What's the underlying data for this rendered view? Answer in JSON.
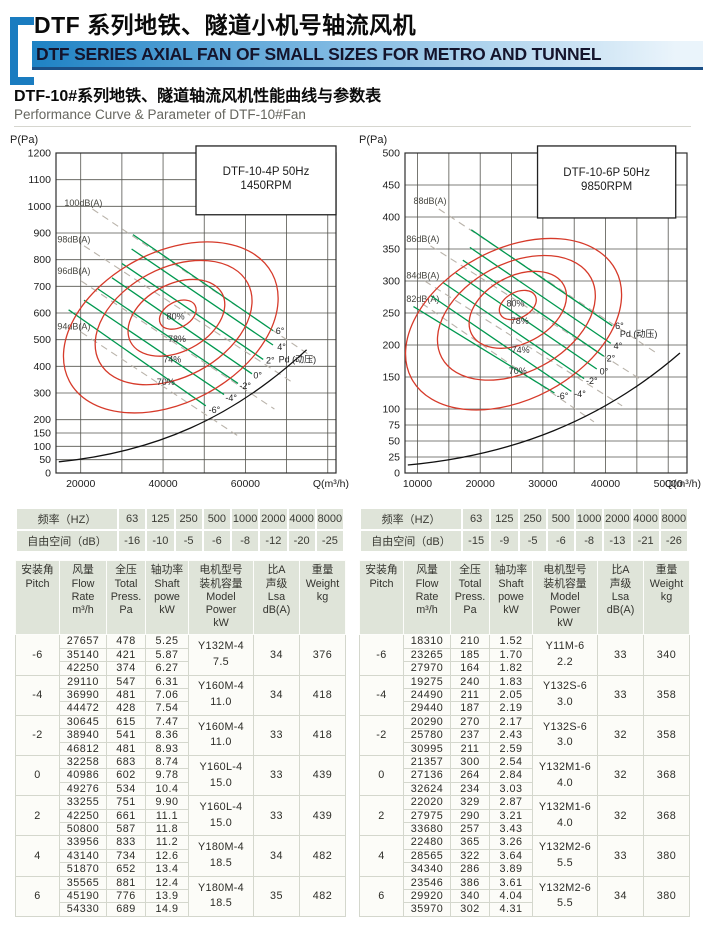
{
  "header": {
    "title_cn": "DTF 系列地铁、隧道小机号轴流风机",
    "title_en": "DTF SERIES AXIAL FAN OF SMALL SIZES FOR METRO AND TUNNEL",
    "subtitle_cn": "DTF-10#系列地铁、隧道轴流风机性能曲线与参数表",
    "subtitle_en": "Performance Curve & Parameter of DTF-10#Fan"
  },
  "colors": {
    "accent_blue": "#1a7cc0",
    "curve_green": "#00984f",
    "contour_red": "#d63a2a",
    "noise_gray": "#b9b3aa",
    "table_header_bg": "#dfe4d9"
  },
  "chart_data": [
    {
      "type": "line",
      "title": "DTF-10-4P 50Hz",
      "subtitle": "1450RPM",
      "ylabel": "P(Pa)",
      "xlabel": "Q(m³/h)",
      "y_ticks": [
        1200,
        1100,
        1000,
        900,
        800,
        700,
        600,
        500,
        400,
        300,
        200,
        150,
        100,
        50,
        0
      ],
      "xlim": [
        14000,
        82000
      ],
      "x_gridlines": [
        20000,
        30000,
        40000,
        50000,
        60000,
        70000,
        80000
      ],
      "x_ticks": [
        {
          "v": 20000,
          "label": "20000"
        },
        {
          "v": 40000,
          "label": "40000"
        },
        {
          "v": 60000,
          "label": "60000"
        }
      ],
      "noise_lines": [
        "100dB(A)",
        "98dB(A)",
        "96dB(A)",
        "94dB(A)"
      ],
      "efficiency_contours": [
        "80%",
        "78%",
        "74%",
        "70%"
      ],
      "pitch_lines": [
        "6°",
        "4°",
        "2°",
        "0°",
        "-2°",
        "-4°",
        "-6°"
      ],
      "dynamic_pressure_label": "Pd (动压)",
      "grid": true
    },
    {
      "type": "line",
      "title": "DTF-10-6P 50Hz",
      "subtitle": "9850RPM",
      "ylabel": "P(Pa)",
      "xlabel": "Q(m³/h)",
      "y_ticks": [
        500,
        450,
        400,
        350,
        300,
        250,
        200,
        150,
        100,
        75,
        50,
        25,
        0
      ],
      "xlim": [
        8000,
        53000
      ],
      "x_gridlines": [
        10000,
        15000,
        20000,
        25000,
        30000,
        35000,
        40000,
        45000,
        50000
      ],
      "x_ticks": [
        {
          "v": 10000,
          "label": "10000"
        },
        {
          "v": 20000,
          "label": "20000"
        },
        {
          "v": 30000,
          "label": "30000"
        },
        {
          "v": 40000,
          "label": "40000"
        },
        {
          "v": 50000,
          "label": "50000"
        }
      ],
      "noise_lines": [
        "88dB(A)",
        "86dB(A)",
        "84dB(A)",
        "82dB(A)"
      ],
      "efficiency_contours": [
        "80%",
        "78%",
        "74%",
        "70%"
      ],
      "pitch_lines": [
        "6°",
        "4°",
        "2°",
        "0°",
        "-2°",
        "-4°",
        "-6°"
      ],
      "dynamic_pressure_label": "Pd (动压)",
      "grid": true
    }
  ],
  "freq_tables": [
    {
      "row1_label": "频率（HZ）",
      "row2_label": "自由空间（dB）",
      "freqs": [
        "63",
        "125",
        "250",
        "500",
        "1000",
        "2000",
        "4000",
        "8000"
      ],
      "values": [
        "-16",
        "-10",
        "-5",
        "-6",
        "-8",
        "-12",
        "-20",
        "-25"
      ]
    },
    {
      "row1_label": "频率（HZ）",
      "row2_label": "自由空间（dB）",
      "freqs": [
        "63",
        "125",
        "250",
        "500",
        "1000",
        "2000",
        "4000",
        "8000"
      ],
      "values": [
        "-15",
        "-9",
        "-5",
        "-6",
        "-8",
        "-13",
        "-21",
        "-26"
      ]
    }
  ],
  "param_tables": [
    {
      "headers": {
        "pitch": [
          "安装角",
          "Pitch"
        ],
        "flow": [
          "风量",
          "Flow",
          "Rate",
          "m³/h"
        ],
        "press": [
          "全压",
          "Total",
          "Press.",
          "Pa"
        ],
        "shaft": [
          "轴功率",
          "Shaft",
          "powe",
          "kW"
        ],
        "motor": [
          "电机型号",
          "装机容量",
          "Model",
          "Power",
          "kW"
        ],
        "dba": [
          "比A",
          "声级",
          "Lsa",
          "dB(A)"
        ],
        "weight": [
          "重量",
          "Weight",
          "kg"
        ]
      },
      "rows": [
        {
          "pitch": "-6",
          "flow": [
            "27657",
            "35140",
            "42250"
          ],
          "press": [
            "478",
            "421",
            "374"
          ],
          "shaft": [
            "5.25",
            "5.87",
            "6.27"
          ],
          "motor": "Y132M-4",
          "power": "7.5",
          "dba": "34",
          "weight": "376"
        },
        {
          "pitch": "-4",
          "flow": [
            "29110",
            "36990",
            "44472"
          ],
          "press": [
            "547",
            "481",
            "428"
          ],
          "shaft": [
            "6.31",
            "7.06",
            "7.54"
          ],
          "motor": "Y160M-4",
          "power": "11.0",
          "dba": "34",
          "weight": "418"
        },
        {
          "pitch": "-2",
          "flow": [
            "30645",
            "38940",
            "46812"
          ],
          "press": [
            "615",
            "541",
            "481"
          ],
          "shaft": [
            "7.47",
            "8.36",
            "8.93"
          ],
          "motor": "Y160M-4",
          "power": "11.0",
          "dba": "33",
          "weight": "418"
        },
        {
          "pitch": "0",
          "flow": [
            "32258",
            "40986",
            "49276"
          ],
          "press": [
            "683",
            "602",
            "534"
          ],
          "shaft": [
            "8.74",
            "9.78",
            "10.4"
          ],
          "motor": "Y160L-4",
          "power": "15.0",
          "dba": "33",
          "weight": "439"
        },
        {
          "pitch": "2",
          "flow": [
            "33255",
            "42250",
            "50800"
          ],
          "press": [
            "751",
            "661",
            "587"
          ],
          "shaft": [
            "9.90",
            "11.1",
            "11.8"
          ],
          "motor": "Y160L-4",
          "power": "15.0",
          "dba": "33",
          "weight": "439"
        },
        {
          "pitch": "4",
          "flow": [
            "33956",
            "43140",
            "51870"
          ],
          "press": [
            "833",
            "734",
            "652"
          ],
          "shaft": [
            "11.2",
            "12.6",
            "13.4"
          ],
          "motor": "Y180M-4",
          "power": "18.5",
          "dba": "34",
          "weight": "482"
        },
        {
          "pitch": "6",
          "flow": [
            "35565",
            "45190",
            "54330"
          ],
          "press": [
            "881",
            "776",
            "689"
          ],
          "shaft": [
            "12.4",
            "13.9",
            "14.9"
          ],
          "motor": "Y180M-4",
          "power": "18.5",
          "dba": "35",
          "weight": "482"
        }
      ]
    },
    {
      "headers": {
        "pitch": [
          "安装角",
          "Pitch"
        ],
        "flow": [
          "风量",
          "Flow",
          "Rate",
          "m³/h"
        ],
        "press": [
          "全压",
          "Total",
          "Press.",
          "Pa"
        ],
        "shaft": [
          "轴功率",
          "Shaft",
          "powe",
          "kW"
        ],
        "motor": [
          "电机型号",
          "装机容量",
          "Model",
          "Power",
          "kW"
        ],
        "dba": [
          "比A",
          "声级",
          "Lsa",
          "dB(A)"
        ],
        "weight": [
          "重量",
          "Weight",
          "kg"
        ]
      },
      "rows": [
        {
          "pitch": "-6",
          "flow": [
            "18310",
            "23265",
            "27970"
          ],
          "press": [
            "210",
            "185",
            "164"
          ],
          "shaft": [
            "1.52",
            "1.70",
            "1.82"
          ],
          "motor": "Y11M-6",
          "power": "2.2",
          "dba": "33",
          "weight": "340"
        },
        {
          "pitch": "-4",
          "flow": [
            "19275",
            "24490",
            "29440"
          ],
          "press": [
            "240",
            "211",
            "187"
          ],
          "shaft": [
            "1.83",
            "2.05",
            "2.19"
          ],
          "motor": "Y132S-6",
          "power": "3.0",
          "dba": "33",
          "weight": "358"
        },
        {
          "pitch": "-2",
          "flow": [
            "20290",
            "25780",
            "30995"
          ],
          "press": [
            "270",
            "237",
            "211"
          ],
          "shaft": [
            "2.17",
            "2.43",
            "2.59"
          ],
          "motor": "Y132S-6",
          "power": "3.0",
          "dba": "32",
          "weight": "358"
        },
        {
          "pitch": "0",
          "flow": [
            "21357",
            "27136",
            "32624"
          ],
          "press": [
            "300",
            "264",
            "234"
          ],
          "shaft": [
            "2.54",
            "2.84",
            "3.03"
          ],
          "motor": "Y132M1-6",
          "power": "4.0",
          "dba": "32",
          "weight": "368"
        },
        {
          "pitch": "2",
          "flow": [
            "22020",
            "27975",
            "33680"
          ],
          "press": [
            "329",
            "290",
            "257"
          ],
          "shaft": [
            "2.87",
            "3.21",
            "3.43"
          ],
          "motor": "Y132M1-6",
          "power": "4.0",
          "dba": "32",
          "weight": "368"
        },
        {
          "pitch": "4",
          "flow": [
            "22480",
            "28565",
            "34340"
          ],
          "press": [
            "365",
            "322",
            "286"
          ],
          "shaft": [
            "3.26",
            "3.64",
            "3.89"
          ],
          "motor": "Y132M2-6",
          "power": "5.5",
          "dba": "33",
          "weight": "380"
        },
        {
          "pitch": "6",
          "flow": [
            "23546",
            "29920",
            "35970"
          ],
          "press": [
            "386",
            "340",
            "302"
          ],
          "shaft": [
            "3.61",
            "4.04",
            "4.31"
          ],
          "motor": "Y132M2-6",
          "power": "5.5",
          "dba": "34",
          "weight": "380"
        }
      ]
    }
  ]
}
